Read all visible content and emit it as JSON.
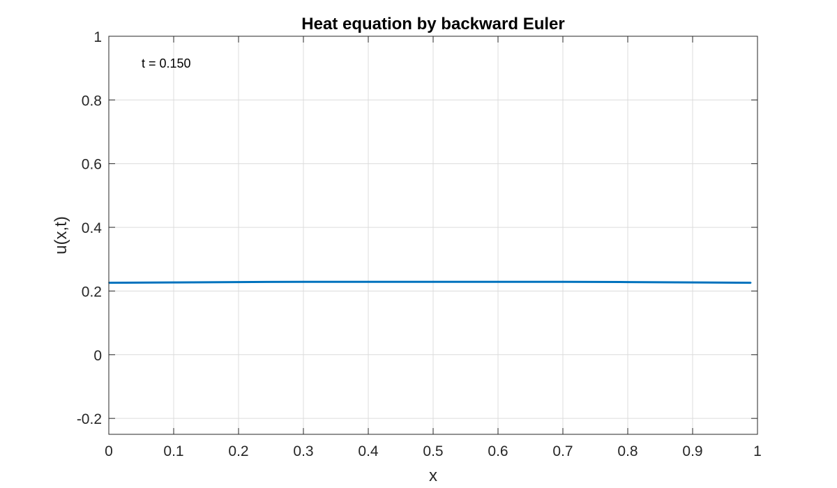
{
  "chart_data": {
    "type": "line",
    "title": "Heat equation by backward Euler",
    "xlabel": "x",
    "ylabel": "u(x,t)",
    "xlim": [
      0,
      1
    ],
    "ylim": [
      -0.25,
      1
    ],
    "xticks": [
      0,
      0.1,
      0.2,
      0.3,
      0.4,
      0.5,
      0.6,
      0.7,
      0.8,
      0.9,
      1
    ],
    "xtick_labels": [
      "0",
      "0.1",
      "0.2",
      "0.3",
      "0.4",
      "0.5",
      "0.6",
      "0.7",
      "0.8",
      "0.9",
      "1"
    ],
    "yticks": [
      -0.2,
      0,
      0.2,
      0.4,
      0.6,
      0.8,
      1
    ],
    "ytick_labels": [
      "-0.2",
      "0",
      "0.2",
      "0.4",
      "0.6",
      "0.8",
      "1"
    ],
    "grid": true,
    "annotation": "t = 0.150",
    "series": [
      {
        "color": "#0072bd",
        "x": [
          0,
          0.1,
          0.2,
          0.3,
          0.4,
          0.5,
          0.6,
          0.7,
          0.8,
          0.9,
          0.99
        ],
        "y": [
          0.226,
          0.227,
          0.228,
          0.229,
          0.229,
          0.229,
          0.229,
          0.229,
          0.228,
          0.227,
          0.226
        ]
      }
    ]
  }
}
